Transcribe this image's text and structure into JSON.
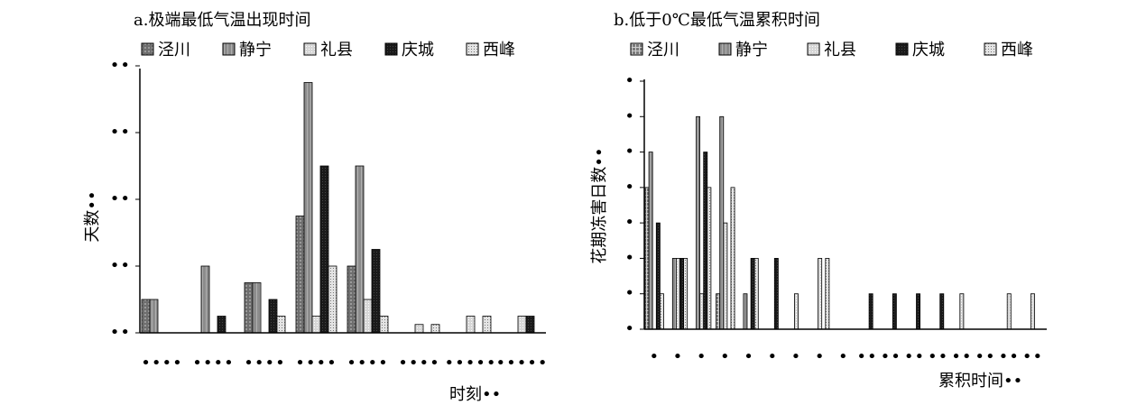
{
  "chart_data": [
    {
      "id": "a",
      "type": "bar",
      "title": "a.极端最低气温出现时间",
      "ylabel": "天数••",
      "xlabel": "时刻••",
      "y_tick_labels": [
        "••",
        "••",
        "••",
        "••",
        "••"
      ],
      "x_tick_labels": [
        "••••",
        "••••",
        "••••",
        "••••",
        "••••",
        "••••",
        "•••••",
        "•••••"
      ],
      "ylim": [
        0,
        8
      ],
      "groups": 8,
      "series": [
        {
          "name": "泾川",
          "values": [
            1,
            0,
            1.5,
            3.5,
            2,
            0,
            0,
            0
          ]
        },
        {
          "name": "静宁",
          "values": [
            1,
            2,
            1.5,
            7.5,
            5,
            0,
            0,
            0
          ]
        },
        {
          "name": "礼县",
          "values": [
            0,
            0,
            0,
            0.5,
            1,
            0.25,
            0.5,
            0.5
          ]
        },
        {
          "name": "庆城",
          "values": [
            0,
            0.5,
            1,
            5,
            2.5,
            0,
            0,
            0.5
          ]
        },
        {
          "name": "西峰",
          "values": [
            0,
            0,
            0.5,
            2,
            0.5,
            0.25,
            0.5,
            0
          ]
        }
      ]
    },
    {
      "id": "b",
      "type": "bar",
      "title": "b.低于0℃最低气温累积时间",
      "ylabel": "花期冻害日数••",
      "xlabel": "累积时间••",
      "y_tick_labels": [
        "•",
        "•",
        "•",
        "•",
        "•",
        "•",
        "•",
        "•"
      ],
      "x_tick_labels": [
        "•",
        "•",
        "•",
        "•",
        "•",
        "•",
        "•",
        "•",
        "•",
        "••",
        "••",
        "••",
        "••",
        "••",
        "••",
        "••",
        "••"
      ],
      "ylim": [
        0,
        7
      ],
      "groups": 17,
      "series": [
        {
          "name": "泾川",
          "values": [
            4,
            0,
            0,
            1,
            0,
            0,
            0,
            0,
            0,
            0,
            0,
            0,
            0,
            0,
            0,
            0,
            0
          ]
        },
        {
          "name": "静宁",
          "values": [
            5,
            2,
            6,
            6,
            1,
            0,
            0,
            0,
            0,
            0,
            0,
            0,
            0,
            0,
            0,
            0,
            0
          ]
        },
        {
          "name": "礼县",
          "values": [
            0,
            2,
            1,
            3,
            0,
            0,
            1,
            2,
            0,
            0,
            0,
            0,
            0,
            1,
            0,
            1,
            1
          ]
        },
        {
          "name": "庆城",
          "values": [
            3,
            2,
            5,
            0,
            2,
            2,
            0,
            0,
            0,
            1,
            1,
            1,
            1,
            0,
            0,
            0,
            0
          ]
        },
        {
          "name": "西峰",
          "values": [
            1,
            2,
            4,
            4,
            2,
            0,
            0,
            2,
            0,
            0,
            0,
            0,
            0,
            0,
            0,
            0,
            0
          ]
        }
      ]
    }
  ]
}
